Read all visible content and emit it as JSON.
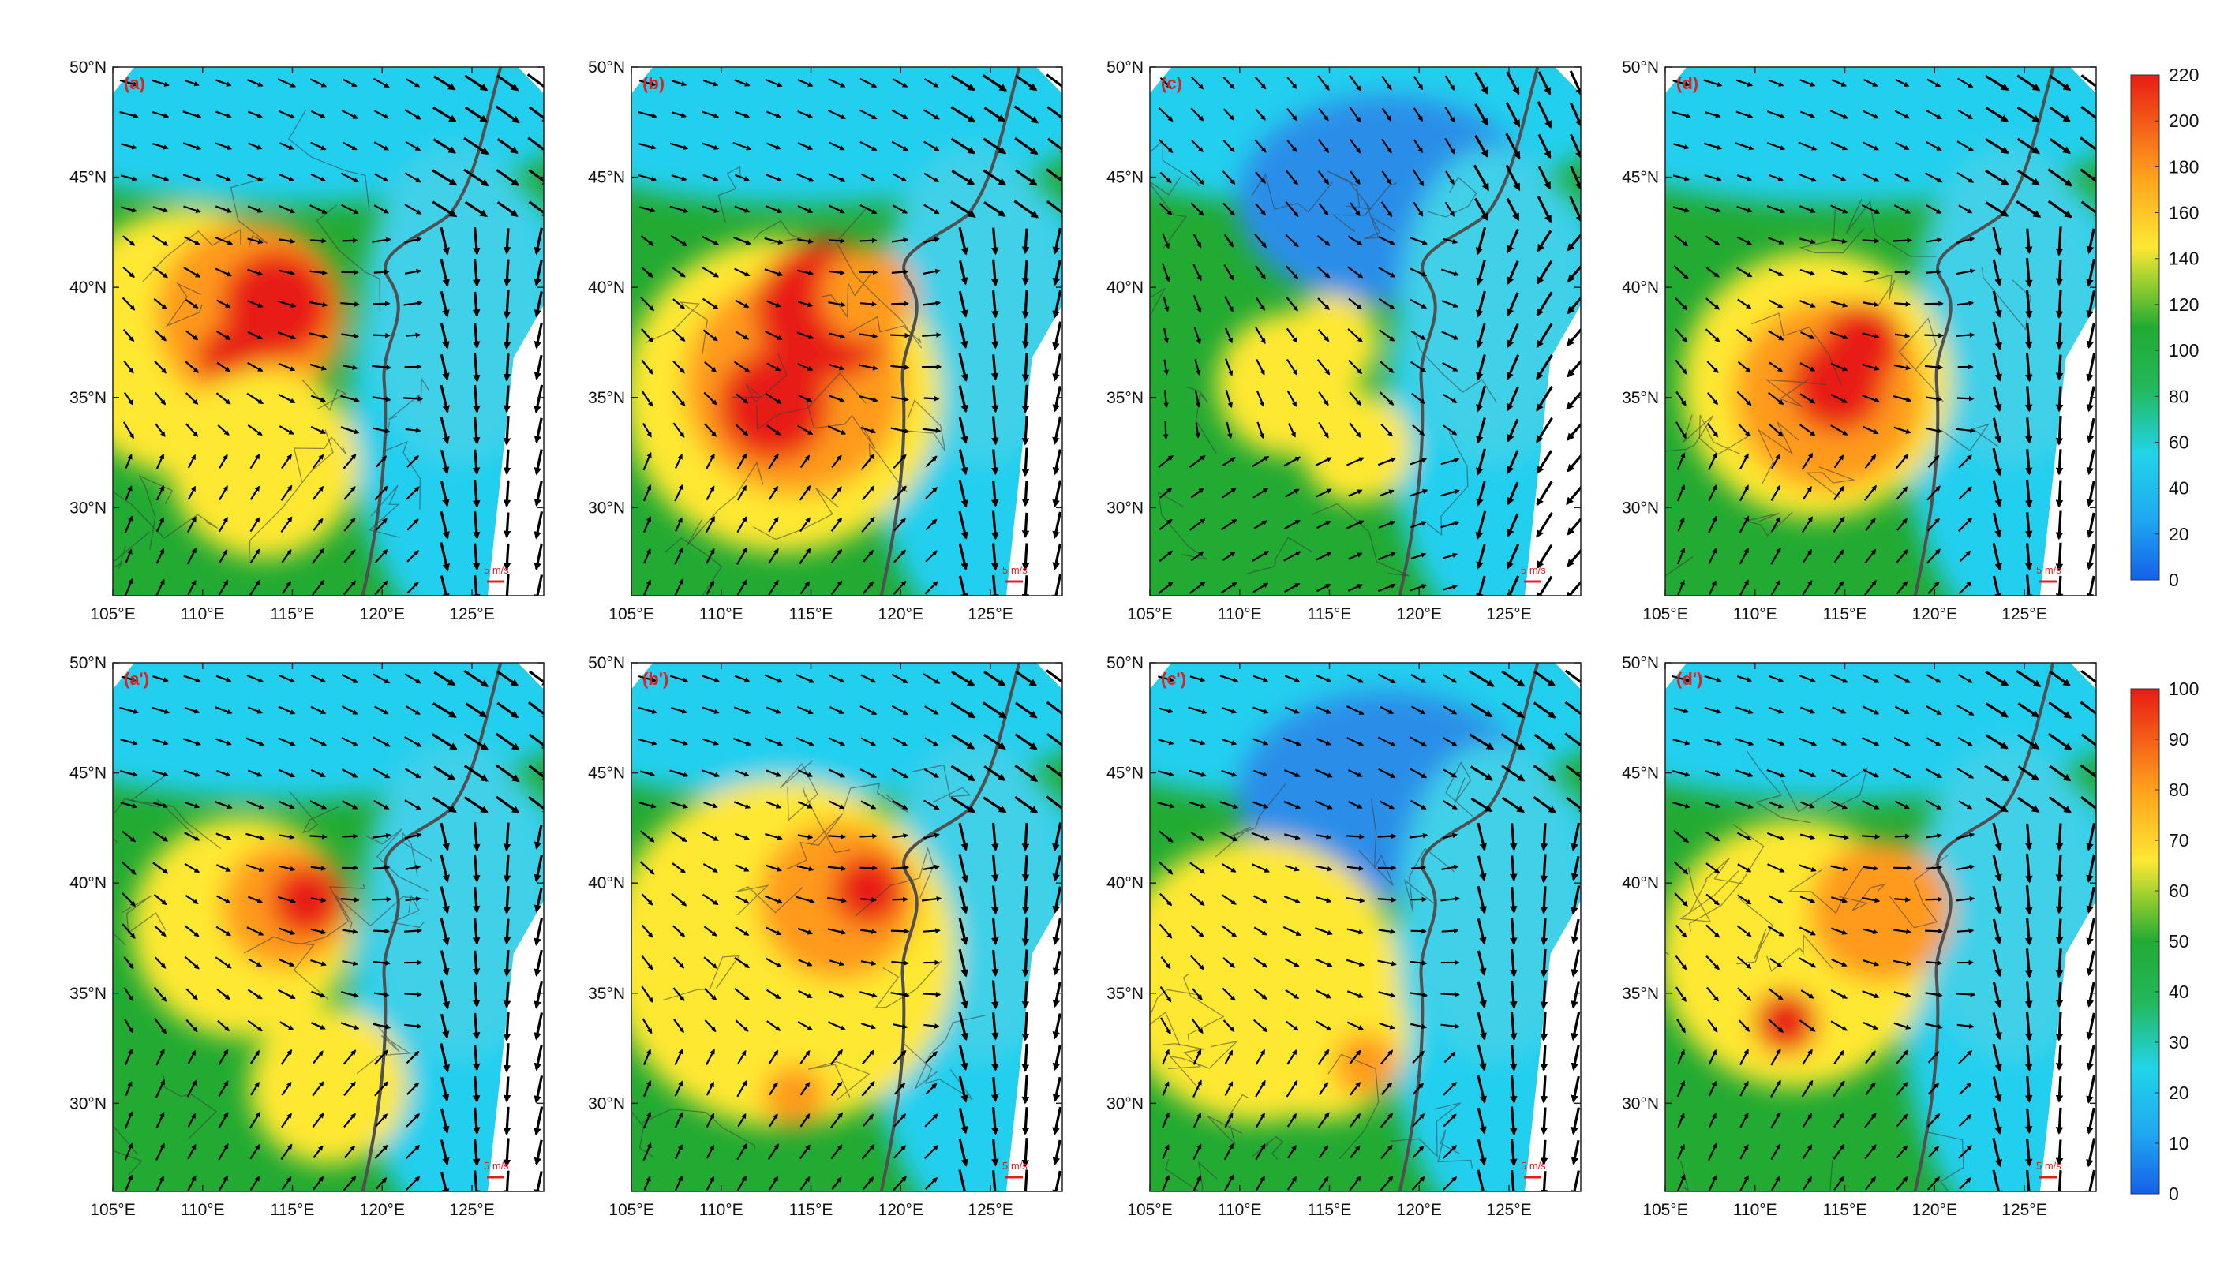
{
  "figure": {
    "panel_labels": [
      "(a)",
      "(b)",
      "(c)",
      "(d)",
      "(a')",
      "(b')",
      "(c')",
      "(d')"
    ],
    "lon_ticks": [
      "105°E",
      "110°E",
      "115°E",
      "120°E",
      "125°E"
    ],
    "lat_ticks": [
      "50°N",
      "45°N",
      "40°N",
      "35°N",
      "30°N"
    ],
    "scale_label": "5 m/s",
    "colorbar_top": {
      "ticks": [
        "220",
        "200",
        "180",
        "160",
        "140",
        "120",
        "100",
        "80",
        "60",
        "40",
        "20",
        "0"
      ],
      "min": 0,
      "max": 220
    },
    "colorbar_bottom": {
      "ticks": [
        "100",
        "90",
        "80",
        "70",
        "60",
        "50",
        "40",
        "30",
        "20",
        "10",
        "0"
      ],
      "min": 0,
      "max": 100
    },
    "colors": {
      "low": "#1565e0",
      "cyan": "#22cfee",
      "green": "#22aa33",
      "yellow": "#ffe833",
      "orange": "#ff9a1a",
      "high": "#e81c14",
      "vector": "#000000",
      "coast": "#505050"
    },
    "map_extent": {
      "lon": [
        105,
        129
      ],
      "lat": [
        26,
        50
      ]
    }
  }
}
